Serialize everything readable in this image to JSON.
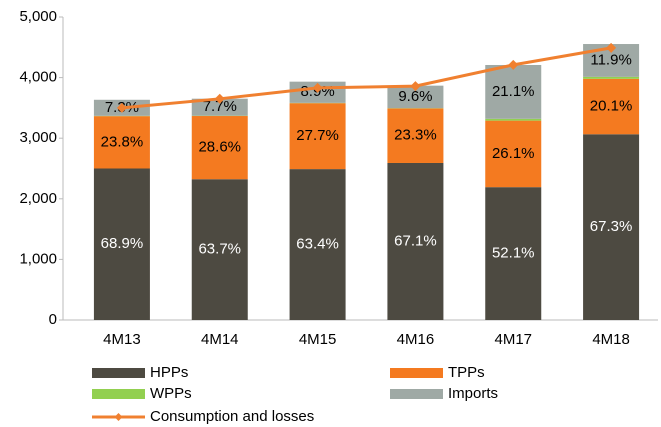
{
  "chart_data": {
    "type": "stacked_bar_line",
    "categories": [
      "4M13",
      "4M14",
      "4M15",
      "4M16",
      "4M17",
      "4M18"
    ],
    "series": [
      {
        "name": "HPPs",
        "color": "#4d4a41",
        "values": [
          2500,
          2323,
          2490,
          2591,
          2192,
          3065
        ],
        "value_labels": [
          "68.9%",
          "63.7%",
          "63.4%",
          "67.1%",
          "52.1%",
          "67.3%"
        ],
        "label_color": "#ffffff"
      },
      {
        "name": "TPPs",
        "color": "#f47a20",
        "values": [
          864,
          1043,
          1088,
          900,
          1098,
          915
        ],
        "value_labels": [
          "23.8%",
          "28.6%",
          "27.7%",
          "23.3%",
          "26.1%",
          "20.1%"
        ],
        "label_color": "#000000"
      },
      {
        "name": "WPPs",
        "color": "#92d050",
        "values": [
          5,
          5,
          5,
          5,
          30,
          32
        ]
      },
      {
        "name": "Imports",
        "color": "#9fa9a5",
        "values": [
          265,
          281,
          350,
          371,
          888,
          542
        ],
        "value_labels": [
          "7.3%",
          "7.7%",
          "8.9%",
          "9.6%",
          "21.1%",
          "11.9%"
        ],
        "label_color": "#000000"
      },
      {
        "name": "Consumption and losses",
        "color": "#f08030",
        "type": "line",
        "values": [
          3500,
          3650,
          3830,
          3860,
          4210,
          4490
        ]
      }
    ],
    "ylim": [
      0,
      5000
    ],
    "yticks": [
      0,
      {
        "value": 1000,
        "label": "1,000"
      },
      {
        "value": 2000,
        "label": "2,000"
      },
      {
        "value": 3000,
        "label": "3,000"
      },
      {
        "value": 4000,
        "label": "4,000"
      },
      {
        "value": 5000,
        "label": "5,000"
      }
    ],
    "grid": false
  }
}
